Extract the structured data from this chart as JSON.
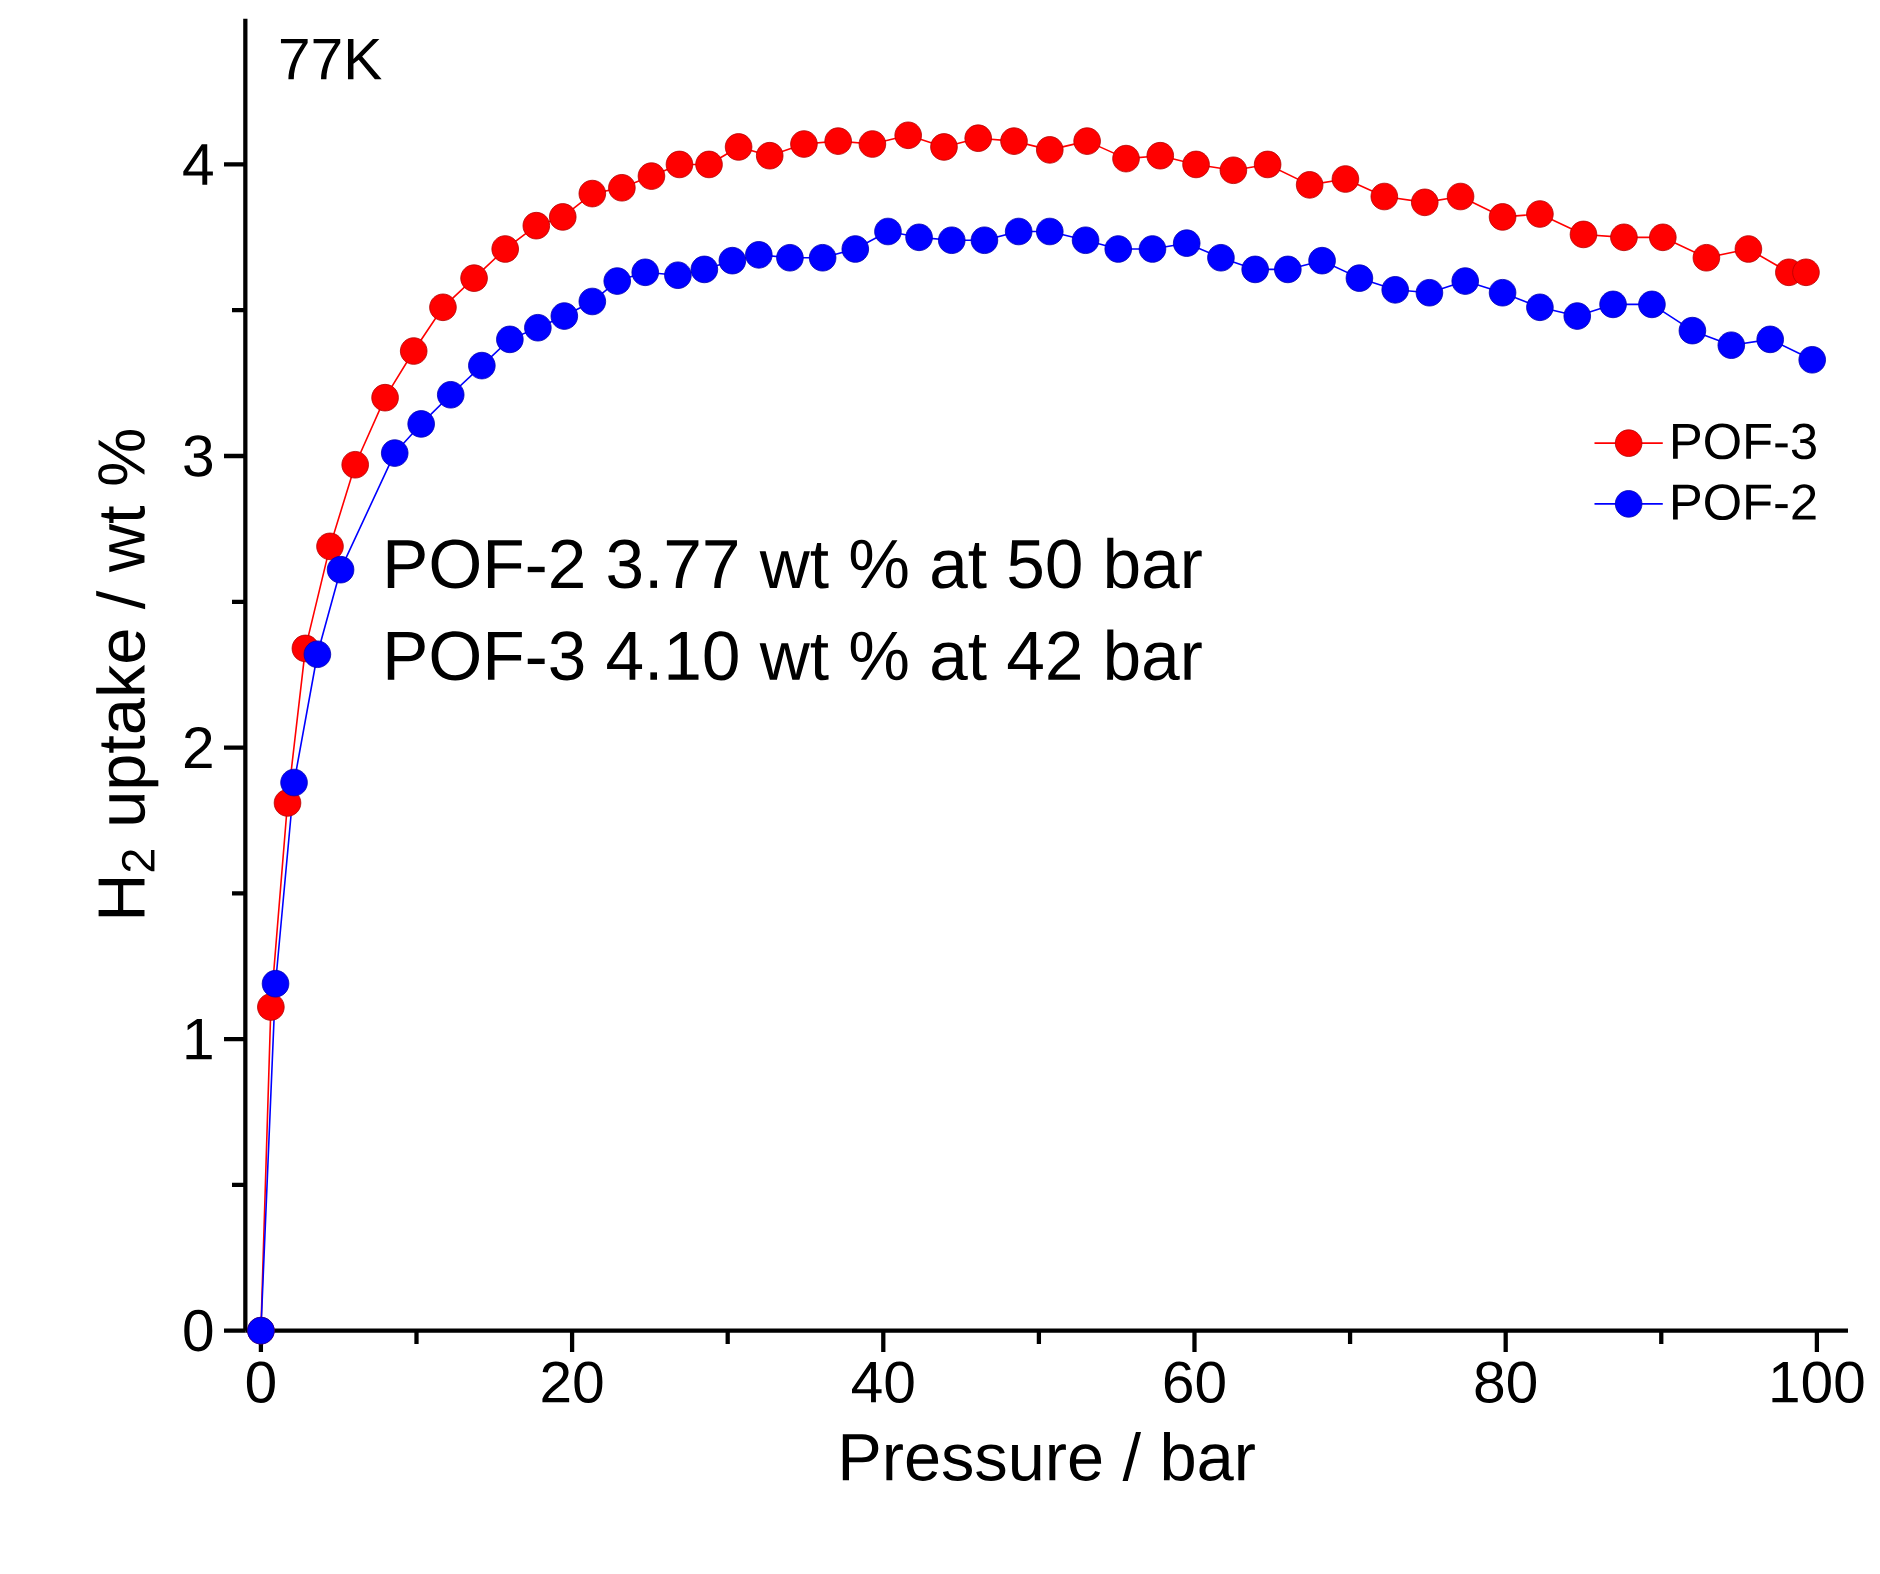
{
  "chart_data": {
    "type": "line",
    "xlabel": "Pressure / bar",
    "ylabel": "H$_{2}$ uptake / wt %",
    "annotations": [
      "77K",
      "POF-2 3.77 wt % at 50 bar",
      "POF-3 4.10 wt % at 42 bar"
    ],
    "xlim": [
      -1,
      102
    ],
    "ylim": [
      0,
      4.5
    ],
    "xticks": [
      0,
      20,
      40,
      60,
      80,
      100
    ],
    "yticks": [
      0,
      1,
      2,
      3,
      4
    ],
    "grid": false,
    "legend": "right",
    "marker": "circle",
    "line_style": "solid",
    "series": [
      {
        "name": "POF-3",
        "color": "#ff0000",
        "x": [
          0,
          0.64,
          1.71,
          2.86,
          4.44,
          6.06,
          7.98,
          9.82,
          11.7,
          13.7,
          15.7,
          17.7,
          19.4,
          21.3,
          23.2,
          25.1,
          26.9,
          28.8,
          30.7,
          32.7,
          34.9,
          37.1,
          39.3,
          41.6,
          43.9,
          46.1,
          48.4,
          50.7,
          53.1,
          55.6,
          57.8,
          60.1,
          62.5,
          64.7,
          67.4,
          69.7,
          72.2,
          74.8,
          77.1,
          79.8,
          82.2,
          85.0,
          87.6,
          90.1,
          92.9,
          95.6,
          98.2,
          99.3
        ],
        "values": [
          0,
          1.11,
          1.81,
          2.34,
          2.69,
          2.97,
          3.2,
          3.36,
          3.51,
          3.61,
          3.71,
          3.79,
          3.82,
          3.9,
          3.92,
          3.96,
          4.0,
          4.0,
          4.06,
          4.03,
          4.07,
          4.08,
          4.07,
          4.1,
          4.06,
          4.09,
          4.08,
          4.05,
          4.08,
          4.02,
          4.03,
          4.0,
          3.98,
          4.0,
          3.93,
          3.95,
          3.89,
          3.87,
          3.89,
          3.82,
          3.83,
          3.76,
          3.75,
          3.75,
          3.68,
          3.71,
          3.63,
          3.63
        ]
      },
      {
        "name": "POF-2",
        "color": "#0000ff",
        "x": [
          0,
          0.94,
          2.13,
          3.63,
          5.12,
          8.6,
          10.3,
          12.2,
          14.2,
          16.0,
          17.8,
          19.5,
          21.3,
          22.9,
          24.7,
          26.8,
          28.5,
          30.3,
          32.0,
          34.0,
          36.1,
          38.2,
          40.3,
          42.3,
          44.4,
          46.5,
          48.7,
          50.7,
          53.0,
          55.1,
          57.3,
          59.5,
          61.7,
          63.9,
          66.0,
          68.2,
          70.6,
          72.9,
          75.1,
          77.4,
          79.8,
          82.2,
          84.6,
          86.9,
          89.4,
          92.0,
          94.5,
          97.0,
          99.7
        ],
        "values": [
          0,
          1.19,
          1.88,
          2.32,
          2.61,
          3.01,
          3.11,
          3.21,
          3.31,
          3.4,
          3.44,
          3.48,
          3.53,
          3.6,
          3.63,
          3.62,
          3.64,
          3.67,
          3.69,
          3.68,
          3.68,
          3.71,
          3.77,
          3.75,
          3.74,
          3.74,
          3.77,
          3.77,
          3.74,
          3.71,
          3.71,
          3.73,
          3.68,
          3.64,
          3.64,
          3.67,
          3.61,
          3.57,
          3.56,
          3.6,
          3.56,
          3.51,
          3.48,
          3.52,
          3.52,
          3.43,
          3.38,
          3.4,
          3.33
        ]
      }
    ]
  }
}
